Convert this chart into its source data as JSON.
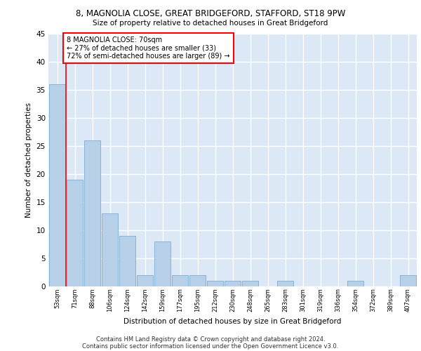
{
  "title_line1": "8, MAGNOLIA CLOSE, GREAT BRIDGEFORD, STAFFORD, ST18 9PW",
  "title_line2": "Size of property relative to detached houses in Great Bridgeford",
  "xlabel": "Distribution of detached houses by size in Great Bridgeford",
  "ylabel": "Number of detached properties",
  "categories": [
    "53sqm",
    "71sqm",
    "88sqm",
    "106sqm",
    "124sqm",
    "142sqm",
    "159sqm",
    "177sqm",
    "195sqm",
    "212sqm",
    "230sqm",
    "248sqm",
    "265sqm",
    "283sqm",
    "301sqm",
    "319sqm",
    "336sqm",
    "354sqm",
    "372sqm",
    "389sqm",
    "407sqm"
  ],
  "values": [
    36,
    19,
    26,
    13,
    9,
    2,
    8,
    2,
    2,
    1,
    1,
    1,
    0,
    1,
    0,
    0,
    0,
    1,
    0,
    0,
    2
  ],
  "bar_color": "#b8cfe8",
  "bar_edge_color": "#7aadd4",
  "background_color": "#dce8f5",
  "annotation_text": "8 MAGNOLIA CLOSE: 70sqm\n← 27% of detached houses are smaller (33)\n72% of semi-detached houses are larger (89) →",
  "annotation_box_color": "white",
  "annotation_box_edge_color": "red",
  "grid_color": "white",
  "ylim": [
    0,
    45
  ],
  "yticks": [
    0,
    5,
    10,
    15,
    20,
    25,
    30,
    35,
    40,
    45
  ],
  "footer_line1": "Contains HM Land Registry data © Crown copyright and database right 2024.",
  "footer_line2": "Contains public sector information licensed under the Open Government Licence v3.0."
}
